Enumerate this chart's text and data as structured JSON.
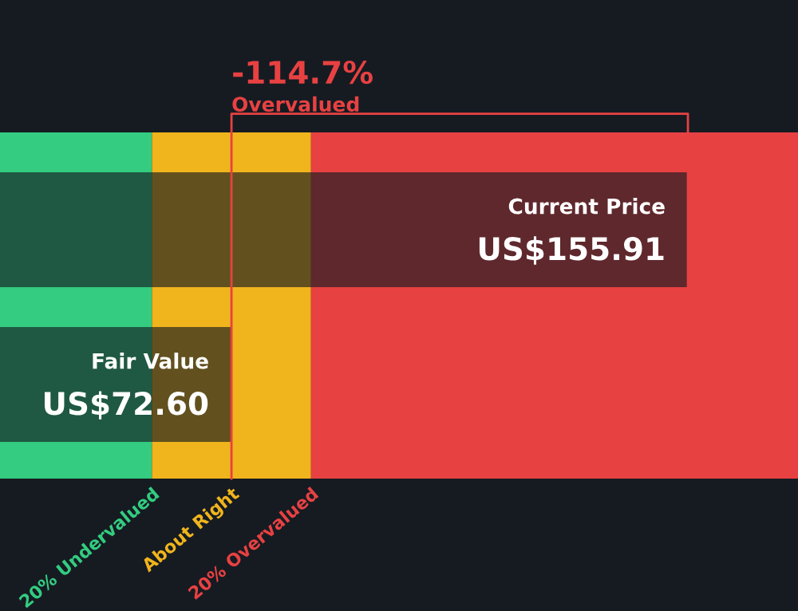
{
  "chart_data": {
    "type": "bar",
    "orientation": "horizontal",
    "categories": [
      "Current Price",
      "Fair Value"
    ],
    "values": [
      155.91,
      72.6
    ],
    "value_labels": [
      "US$155.91",
      "US$72.60"
    ],
    "color": "#161b22",
    "xlim": [
      30.35,
      176
    ],
    "bands": [
      {
        "axis": "x",
        "from": 30.35,
        "to": 58.08,
        "label": "20% Undervalued",
        "color": "#33cc80"
      },
      {
        "axis": "x",
        "from": 58.08,
        "to": 87.12,
        "label": "About Right",
        "color": "#f0b41c"
      },
      {
        "axis": "x",
        "from": 87.12,
        "to": 176,
        "label": "20% Overvalued",
        "color": "#e84142"
      }
    ],
    "annotations": [
      "-114.7%",
      "Overvalued"
    ]
  }
}
